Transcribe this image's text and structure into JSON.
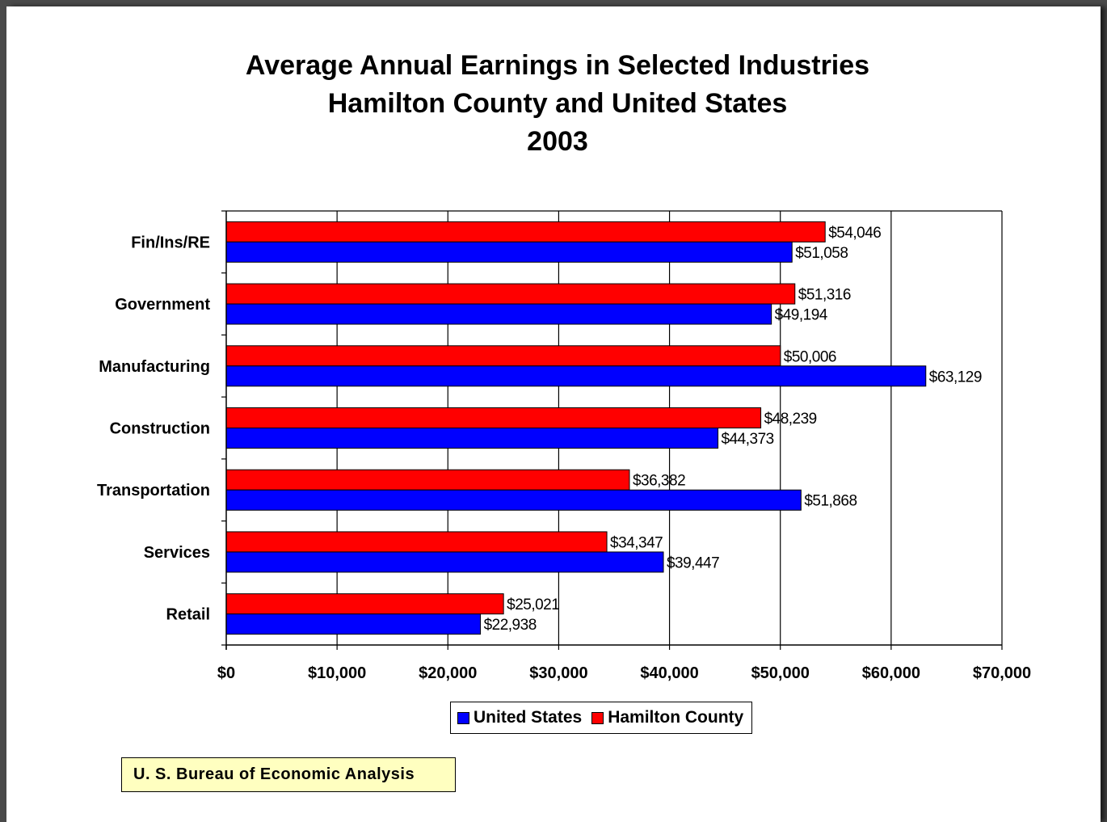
{
  "chart_data": {
    "type": "bar",
    "orientation": "horizontal",
    "title": [
      "Average Annual Earnings in Selected Industries",
      "Hamilton County and United States",
      "2003"
    ],
    "categories": [
      "Fin/Ins/RE",
      "Government",
      "Manufacturing",
      "Construction",
      "Transportation",
      "Services",
      "Retail"
    ],
    "series": [
      {
        "name": "Hamilton County",
        "color": "#ff0000",
        "values": [
          54046,
          51316,
          50006,
          48239,
          36382,
          34347,
          25021
        ],
        "labels": [
          "$54,046",
          "$51,316",
          "$50,006",
          "$48,239",
          "$36,382",
          "$34,347",
          "$25,021"
        ]
      },
      {
        "name": "United States",
        "color": "#0000ff",
        "values": [
          51058,
          49194,
          63129,
          44373,
          51868,
          39447,
          22938
        ],
        "labels": [
          "$51,058",
          "$49,194",
          "$63,129",
          "$44,373",
          "$51,868",
          "$39,447",
          "$22,938"
        ]
      }
    ],
    "xlim": [
      0,
      70000
    ],
    "xticks": [
      0,
      10000,
      20000,
      30000,
      40000,
      50000,
      60000,
      70000
    ],
    "xtick_labels": [
      "$0",
      "$10,000",
      "$20,000",
      "$30,000",
      "$40,000",
      "$50,000",
      "$60,000",
      "$70,000"
    ],
    "grid": "vertical",
    "legend": {
      "position": "bottom",
      "entries": [
        "United States",
        "Hamilton County"
      ]
    },
    "xlabel": "",
    "ylabel": ""
  },
  "legend_labels": {
    "us": "United States",
    "hc": "Hamilton County"
  },
  "colors": {
    "us": "#0000ff",
    "hc": "#ff0000"
  },
  "source_note": "U. S. Bureau of Economic Analysis"
}
